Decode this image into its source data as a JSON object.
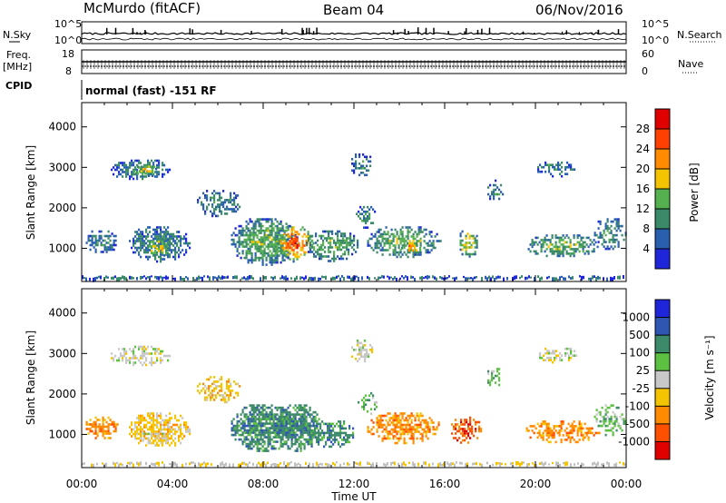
{
  "header": {
    "title": "McMurdo (fitACF)",
    "beam": "Beam 04",
    "date": "06/Nov/2016"
  },
  "noise_panel": {
    "left_label": "N.Sky",
    "right_label": "N.Search",
    "left_ticks": [
      "10^5",
      "10^0"
    ],
    "right_ticks": [
      "10^5",
      "10^0"
    ]
  },
  "freq_panel": {
    "left_label_line1": "Freq.",
    "left_label_line2": "[MHz]",
    "right_label": "Nave",
    "left_ticks": [
      "18",
      "8"
    ],
    "right_ticks": [
      "60",
      "0"
    ]
  },
  "cpid": {
    "label": "CPID",
    "text": "normal (fast) -151 RF"
  },
  "colors": {
    "power": [
      "#1f25d9",
      "#2a5fb0",
      "#3a8a6a",
      "#55b050",
      "#f5c400",
      "#ff8c00",
      "#ff4000",
      "#e00000"
    ],
    "velocity": [
      "#1f25d9",
      "#2f56b3",
      "#3d8a6a",
      "#5cc040",
      "#c8c8c8",
      "#f5c400",
      "#ff8c00",
      "#ff5000",
      "#e00000"
    ],
    "ground": "#c0c0c0"
  },
  "chart_data": [
    {
      "type": "heatmap",
      "name": "power",
      "ylabel": "Slant Range [km]",
      "ylim": [
        180,
        4600
      ],
      "yticks": [
        "1000",
        "2000",
        "3000",
        "4000"
      ],
      "x_ticks": [
        "00:00",
        "04:00",
        "08:00",
        "12:00",
        "16:00",
        "20:00",
        "00:00"
      ],
      "xlim_hours": [
        0,
        24
      ],
      "colorbar": {
        "label": "Power [dB]",
        "range": [
          0,
          32
        ],
        "ticks": [
          "4",
          "8",
          "12",
          "16",
          "20",
          "24",
          "28"
        ]
      },
      "patches": [
        {
          "t": 1.2,
          "t2": 3.9,
          "r": 2700,
          "r2": 3250,
          "level": 2,
          "density": 0.6
        },
        {
          "t": 2.2,
          "t2": 3.4,
          "r": 2800,
          "r2": 3100,
          "level": 4,
          "density": 0.4
        },
        {
          "t": 0.1,
          "t2": 1.6,
          "r": 900,
          "r2": 1500,
          "level": 2,
          "density": 0.55
        },
        {
          "t": 2.0,
          "t2": 4.8,
          "r": 700,
          "r2": 1600,
          "level": 2,
          "density": 0.7
        },
        {
          "t": 2.8,
          "t2": 4.0,
          "r": 800,
          "r2": 1300,
          "level": 4,
          "density": 0.5
        },
        {
          "t": 5.0,
          "t2": 7.0,
          "r": 1800,
          "r2": 2500,
          "level": 2,
          "density": 0.5
        },
        {
          "t": 6.5,
          "t2": 9.5,
          "r": 600,
          "r2": 1800,
          "level": 3,
          "density": 0.75
        },
        {
          "t": 8.5,
          "t2": 10.2,
          "r": 700,
          "r2": 1600,
          "level": 6,
          "density": 0.55
        },
        {
          "t": 9.8,
          "t2": 12.2,
          "r": 700,
          "r2": 1500,
          "level": 3,
          "density": 0.6
        },
        {
          "t": 11.8,
          "t2": 12.8,
          "r": 2800,
          "r2": 3400,
          "level": 2,
          "density": 0.5
        },
        {
          "t": 12.5,
          "t2": 15.8,
          "r": 800,
          "r2": 1600,
          "level": 3,
          "density": 0.6
        },
        {
          "t": 14.0,
          "t2": 15.0,
          "r": 900,
          "r2": 1200,
          "level": 5,
          "density": 0.5
        },
        {
          "t": 16.5,
          "t2": 17.5,
          "r": 800,
          "r2": 1500,
          "level": 4,
          "density": 0.5
        },
        {
          "t": 19.5,
          "t2": 22.8,
          "r": 800,
          "r2": 1400,
          "level": 3,
          "density": 0.55
        },
        {
          "t": 20.0,
          "t2": 21.8,
          "r": 2800,
          "r2": 3200,
          "level": 2,
          "density": 0.45
        },
        {
          "t": 22.5,
          "t2": 24.0,
          "r": 1000,
          "r2": 1800,
          "level": 2,
          "density": 0.45
        },
        {
          "t": 12.0,
          "t2": 13.0,
          "r": 1500,
          "r2": 2100,
          "level": 2,
          "density": 0.4
        },
        {
          "t": 17.8,
          "t2": 18.6,
          "r": 2200,
          "r2": 2700,
          "level": 2,
          "density": 0.4
        }
      ]
    },
    {
      "type": "heatmap",
      "name": "velocity",
      "ylabel": "Slant Range [km]",
      "ylim": [
        180,
        4600
      ],
      "yticks": [
        "1000",
        "2000",
        "3000",
        "4000"
      ],
      "x_ticks": [
        "00:00",
        "04:00",
        "08:00",
        "12:00",
        "16:00",
        "20:00",
        "00:00"
      ],
      "xlim_hours": [
        0,
        24
      ],
      "xlabel": "Time UT",
      "colorbar": {
        "label": "Velocity [m s⁻¹]",
        "ticks": [
          "1000",
          "500",
          "100",
          "25",
          "-25",
          "-100",
          "-500",
          "-1000"
        ]
      },
      "patches": [
        {
          "t": 1.2,
          "t2": 3.9,
          "r": 2700,
          "r2": 3250,
          "level": 4,
          "density": 0.5
        },
        {
          "t": 0.1,
          "t2": 1.6,
          "r": 900,
          "r2": 1500,
          "level": 6,
          "density": 0.6
        },
        {
          "t": 2.0,
          "t2": 4.8,
          "r": 700,
          "r2": 1600,
          "level": 5,
          "density": 0.75
        },
        {
          "t": 2.5,
          "t2": 3.8,
          "r": 800,
          "r2": 1100,
          "level": 4,
          "density": 0.5
        },
        {
          "t": 5.0,
          "t2": 7.0,
          "r": 1800,
          "r2": 2500,
          "level": 5,
          "density": 0.5
        },
        {
          "t": 6.5,
          "t2": 9.5,
          "r": 600,
          "r2": 1800,
          "level": 2,
          "density": 0.8
        },
        {
          "t": 8.5,
          "t2": 10.5,
          "r": 600,
          "r2": 1800,
          "level": 2,
          "density": 0.8
        },
        {
          "t": 10.0,
          "t2": 12.0,
          "r": 700,
          "r2": 1400,
          "level": 2,
          "density": 0.7
        },
        {
          "t": 11.8,
          "t2": 12.8,
          "r": 2800,
          "r2": 3400,
          "level": 4,
          "density": 0.5
        },
        {
          "t": 12.5,
          "t2": 15.8,
          "r": 800,
          "r2": 1600,
          "level": 6,
          "density": 0.65
        },
        {
          "t": 16.2,
          "t2": 17.6,
          "r": 800,
          "r2": 1500,
          "level": 7,
          "density": 0.6
        },
        {
          "t": 19.5,
          "t2": 22.8,
          "r": 800,
          "r2": 1400,
          "level": 6,
          "density": 0.55
        },
        {
          "t": 20.0,
          "t2": 21.8,
          "r": 2800,
          "r2": 3200,
          "level": 4,
          "density": 0.5
        },
        {
          "t": 22.5,
          "t2": 24.0,
          "r": 1000,
          "r2": 1800,
          "level": 3,
          "density": 0.45
        },
        {
          "t": 12.0,
          "t2": 13.0,
          "r": 1500,
          "r2": 2100,
          "level": 3,
          "density": 0.4
        },
        {
          "t": 17.8,
          "t2": 18.6,
          "r": 2200,
          "r2": 2700,
          "level": 3,
          "density": 0.4
        }
      ]
    }
  ]
}
